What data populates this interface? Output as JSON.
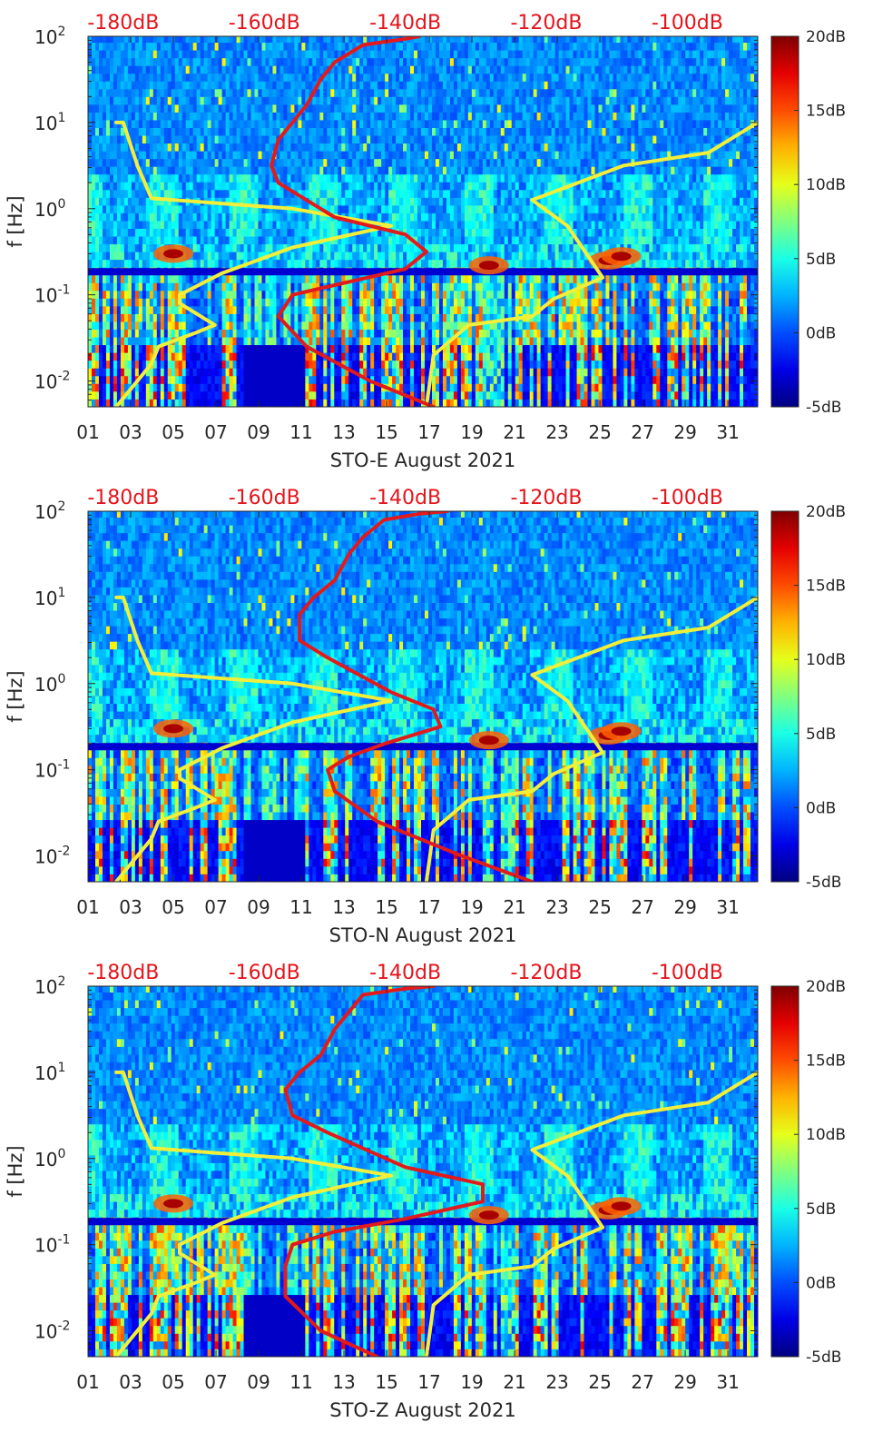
{
  "chart_data": [
    {
      "type": "heatmap",
      "title": "STO-E August 2021",
      "xlabel": "STO-E August 2021",
      "ylabel": "f [Hz]",
      "x_ticks": [
        "01",
        "03",
        "05",
        "07",
        "09",
        "11",
        "13",
        "15",
        "17",
        "19",
        "21",
        "23",
        "25",
        "27",
        "29",
        "31"
      ],
      "y_ticks": [
        {
          "mantissa": "10",
          "exponent": "2"
        },
        {
          "mantissa": "10",
          "exponent": "1"
        },
        {
          "mantissa": "10",
          "exponent": "0"
        },
        {
          "mantissa": "10",
          "exponent": "-1"
        },
        {
          "mantissa": "10",
          "exponent": "-2"
        }
      ],
      "top_axis_ticks": [
        "-180dB",
        "-160dB",
        "-140dB",
        "-120dB",
        "-100dB"
      ],
      "colorbar_ticks": [
        "20dB",
        "15dB",
        "10dB",
        "5dB",
        "0dB",
        "-5dB"
      ],
      "xlim_day": [
        1,
        32.4
      ],
      "ylim_log10_hz": [
        -2.3,
        2
      ],
      "top_axis_db_range": [
        -185,
        -90
      ],
      "colorbar_db_range": [
        -5,
        20
      ],
      "series": [
        {
          "name": "Yellow noise-model curve (left)",
          "x_db": [
            -181,
            -180,
            -176,
            -175,
            -170,
            -167,
            -170,
            -172,
            -172,
            -166,
            -156,
            -142,
            -156,
            -176,
            -178,
            -180,
            -181,
            -181
          ],
          "log10_f": [
            -2.3,
            -2.2,
            -1.8,
            -1.6,
            -1.45,
            -1.35,
            -1.2,
            -1.1,
            -1.0,
            -0.75,
            -0.45,
            -0.2,
            0.0,
            0.12,
            0.5,
            1.0,
            1.0,
            1.0
          ]
        },
        {
          "name": "Yellow noise-model curve (right)",
          "x_db": [
            -137,
            -136,
            -131,
            -122,
            -119,
            -112,
            -117,
            -122,
            -109,
            -97,
            -90
          ],
          "log10_f": [
            -2.3,
            -1.7,
            -1.35,
            -1.25,
            -1.05,
            -0.8,
            -0.2,
            0.1,
            0.5,
            0.65,
            1.0
          ]
        },
        {
          "name": "Red PSD curve",
          "x_db": [
            -136,
            -145,
            -154,
            -158,
            -156,
            -148,
            -140,
            -137,
            -140,
            -150,
            -158,
            -159,
            -158,
            -156,
            -154,
            -152,
            -150,
            -146,
            -140,
            -138
          ],
          "log10_f": [
            -2.3,
            -2.0,
            -1.6,
            -1.25,
            -1.0,
            -0.85,
            -0.7,
            -0.5,
            -0.3,
            -0.1,
            0.3,
            0.5,
            0.8,
            1.0,
            1.2,
            1.5,
            1.7,
            1.9,
            1.97,
            2.0
          ]
        }
      ],
      "bright_band_hz": [
        0.2,
        0.35
      ],
      "hot_spots": [
        {
          "day": 5,
          "hz": 0.3
        },
        {
          "day": 19.8,
          "hz": 0.22
        },
        {
          "day": 25.4,
          "hz": 0.25
        },
        {
          "day": 26,
          "hz": 0.28
        }
      ]
    },
    {
      "type": "heatmap",
      "title": "STO-N August 2021",
      "xlabel": "STO-N August 2021",
      "ylabel": "f [Hz]",
      "x_ticks": [
        "01",
        "03",
        "05",
        "07",
        "09",
        "11",
        "13",
        "15",
        "17",
        "19",
        "21",
        "23",
        "25",
        "27",
        "29",
        "31"
      ],
      "y_ticks": [
        {
          "mantissa": "10",
          "exponent": "2"
        },
        {
          "mantissa": "10",
          "exponent": "1"
        },
        {
          "mantissa": "10",
          "exponent": "0"
        },
        {
          "mantissa": "10",
          "exponent": "-1"
        },
        {
          "mantissa": "10",
          "exponent": "-2"
        }
      ],
      "top_axis_ticks": [
        "-180dB",
        "-160dB",
        "-140dB",
        "-120dB",
        "-100dB"
      ],
      "colorbar_ticks": [
        "20dB",
        "15dB",
        "10dB",
        "5dB",
        "0dB",
        "-5dB"
      ],
      "xlim_day": [
        1,
        32.4
      ],
      "ylim_log10_hz": [
        -2.3,
        2
      ],
      "top_axis_db_range": [
        -185,
        -90
      ],
      "colorbar_db_range": [
        -5,
        20
      ],
      "series": [
        {
          "name": "Yellow noise-model curve (left)",
          "x_db": [
            -181,
            -180,
            -176,
            -175,
            -170,
            -167,
            -170,
            -172,
            -172,
            -166,
            -156,
            -142,
            -156,
            -176,
            -178,
            -180,
            -181,
            -181
          ],
          "log10_f": [
            -2.3,
            -2.2,
            -1.8,
            -1.6,
            -1.45,
            -1.35,
            -1.2,
            -1.1,
            -1.0,
            -0.75,
            -0.45,
            -0.2,
            0.0,
            0.12,
            0.5,
            1.0,
            1.0,
            1.0
          ]
        },
        {
          "name": "Yellow noise-model curve (right)",
          "x_db": [
            -137,
            -136,
            -131,
            -122,
            -119,
            -112,
            -117,
            -122,
            -109,
            -97,
            -90
          ],
          "log10_f": [
            -2.3,
            -1.7,
            -1.35,
            -1.25,
            -1.05,
            -0.8,
            -0.2,
            0.1,
            0.5,
            0.65,
            1.0
          ]
        },
        {
          "name": "Red PSD curve",
          "x_db": [
            -122,
            -132,
            -144,
            -150,
            -151,
            -148,
            -143,
            -135,
            -136,
            -142,
            -151,
            -155,
            -155,
            -153,
            -150,
            -148,
            -146,
            -143,
            -138,
            -134
          ],
          "log10_f": [
            -2.3,
            -2.0,
            -1.6,
            -1.25,
            -1.0,
            -0.85,
            -0.7,
            -0.5,
            -0.3,
            -0.1,
            0.3,
            0.5,
            0.8,
            1.0,
            1.2,
            1.5,
            1.7,
            1.9,
            1.97,
            2.0
          ]
        }
      ],
      "bright_band_hz": [
        0.2,
        0.35
      ],
      "hot_spots": [
        {
          "day": 5,
          "hz": 0.3
        },
        {
          "day": 19.8,
          "hz": 0.22
        },
        {
          "day": 25.4,
          "hz": 0.25
        },
        {
          "day": 26,
          "hz": 0.28
        }
      ]
    },
    {
      "type": "heatmap",
      "title": "STO-Z August 2021",
      "xlabel": "STO-Z August 2021",
      "ylabel": "f [Hz]",
      "x_ticks": [
        "01",
        "03",
        "05",
        "07",
        "09",
        "11",
        "13",
        "15",
        "17",
        "19",
        "21",
        "23",
        "25",
        "27",
        "29",
        "31"
      ],
      "y_ticks": [
        {
          "mantissa": "10",
          "exponent": "2"
        },
        {
          "mantissa": "10",
          "exponent": "1"
        },
        {
          "mantissa": "10",
          "exponent": "0"
        },
        {
          "mantissa": "10",
          "exponent": "-1"
        },
        {
          "mantissa": "10",
          "exponent": "-2"
        }
      ],
      "top_axis_ticks": [
        "-180dB",
        "-160dB",
        "-140dB",
        "-120dB",
        "-100dB"
      ],
      "colorbar_ticks": [
        "20dB",
        "15dB",
        "10dB",
        "5dB",
        "0dB",
        "-5dB"
      ],
      "xlim_day": [
        1,
        32.4
      ],
      "ylim_log10_hz": [
        -2.3,
        2
      ],
      "top_axis_db_range": [
        -185,
        -90
      ],
      "colorbar_db_range": [
        -5,
        20
      ],
      "series": [
        {
          "name": "Yellow noise-model curve (left)",
          "x_db": [
            -181,
            -180,
            -176,
            -175,
            -170,
            -167,
            -170,
            -172,
            -172,
            -166,
            -156,
            -142,
            -156,
            -176,
            -178,
            -180,
            -181,
            -181
          ],
          "log10_f": [
            -2.3,
            -2.2,
            -1.8,
            -1.6,
            -1.45,
            -1.35,
            -1.2,
            -1.1,
            -1.0,
            -0.75,
            -0.45,
            -0.2,
            0.0,
            0.12,
            0.5,
            1.0,
            1.0,
            1.0
          ]
        },
        {
          "name": "Yellow noise-model curve (right)",
          "x_db": [
            -137,
            -136,
            -131,
            -122,
            -119,
            -112,
            -117,
            -122,
            -109,
            -97,
            -90
          ],
          "log10_f": [
            -2.3,
            -1.7,
            -1.35,
            -1.25,
            -1.05,
            -0.8,
            -0.2,
            0.1,
            0.5,
            0.65,
            1.0
          ]
        },
        {
          "name": "Red PSD curve",
          "x_db": [
            -144,
            -152,
            -157,
            -157,
            -156,
            -150,
            -140,
            -129,
            -129,
            -140,
            -151,
            -156,
            -157,
            -155,
            -152,
            -150,
            -148,
            -146,
            -140,
            -136
          ],
          "log10_f": [
            -2.3,
            -2.0,
            -1.6,
            -1.25,
            -1.0,
            -0.85,
            -0.7,
            -0.5,
            -0.3,
            -0.1,
            0.3,
            0.5,
            0.8,
            1.0,
            1.2,
            1.5,
            1.7,
            1.9,
            1.97,
            2.0
          ]
        }
      ],
      "bright_band_hz": [
        0.2,
        0.35
      ],
      "hot_spots": [
        {
          "day": 5,
          "hz": 0.3
        },
        {
          "day": 19.8,
          "hz": 0.22
        },
        {
          "day": 25.4,
          "hz": 0.25
        },
        {
          "day": 26,
          "hz": 0.28
        }
      ]
    }
  ]
}
